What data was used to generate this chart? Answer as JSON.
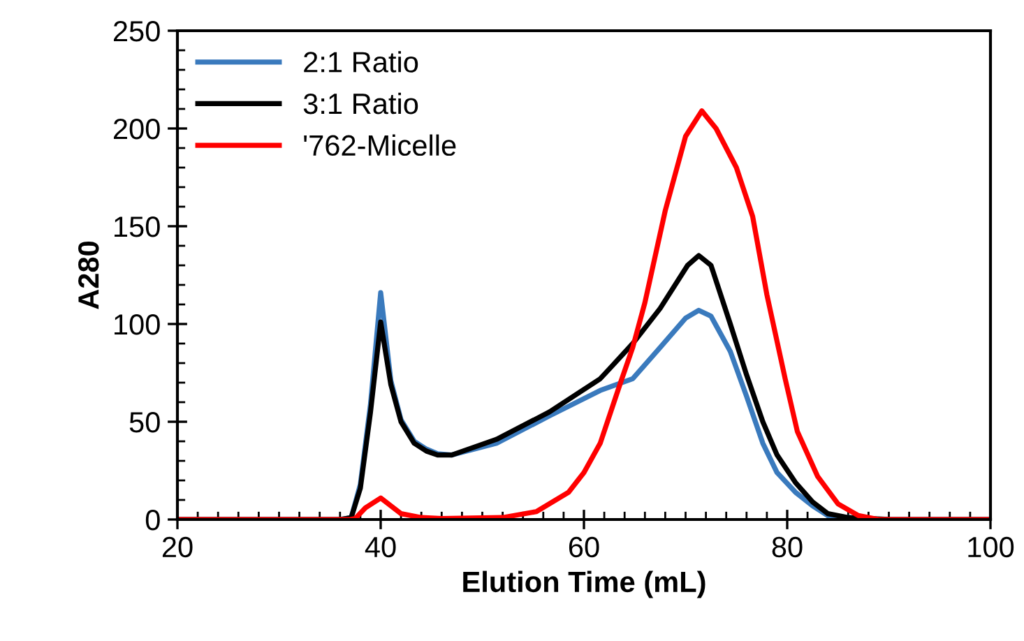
{
  "chart_data": {
    "type": "line",
    "xlabel": "Elution Time (mL)",
    "ylabel": "A280",
    "xlim": [
      20,
      100
    ],
    "xticks": [
      20,
      40,
      60,
      80,
      100
    ],
    "ylim": [
      0,
      250
    ],
    "yticks": [
      0,
      50,
      100,
      150,
      200,
      250
    ],
    "legend": "top left",
    "grid": false,
    "marker": "none",
    "line_style": "solid",
    "series": [
      {
        "name": "2:1 Ratio",
        "color": "#3a7abd",
        "x": [
          20,
          36,
          37.1,
          38,
          39,
          40,
          41,
          42,
          43.3,
          44.5,
          45.6,
          47,
          51.4,
          56.6,
          61.6,
          64.8,
          67.5,
          70,
          71.3,
          72.5,
          74.4,
          76,
          77.6,
          79,
          80.8,
          82.5,
          84,
          86,
          88,
          100
        ],
        "values": [
          0,
          0,
          1,
          18,
          59,
          116,
          71,
          51,
          40,
          36,
          33.6,
          33,
          39,
          53,
          66,
          72,
          88,
          103,
          107,
          104,
          86,
          63,
          39,
          24,
          14,
          7,
          2,
          1,
          0,
          0
        ]
      },
      {
        "name": "3:1 Ratio",
        "color": "#000000",
        "x": [
          20,
          36,
          37.1,
          38,
          39,
          40,
          41,
          42,
          43.3,
          44.5,
          45.6,
          47,
          51.4,
          56.6,
          61.6,
          62.5,
          64.8,
          67.5,
          70.2,
          71.3,
          72.5,
          74.4,
          76,
          77.6,
          79,
          80.8,
          82.5,
          84,
          86,
          90,
          100
        ],
        "values": [
          0,
          0,
          1,
          16,
          55,
          101,
          69,
          50,
          39,
          35,
          33,
          33,
          41,
          55,
          72,
          77,
          90,
          108,
          130,
          135,
          130,
          100,
          74,
          50,
          33,
          19,
          9,
          3,
          1,
          0,
          0
        ]
      },
      {
        "name": "'762-Micelle",
        "color": "#ff0000",
        "x": [
          20,
          37,
          37.5,
          38.5,
          40,
          41,
          42,
          44,
          46,
          52,
          55.3,
          58.5,
          60,
          61.6,
          63.6,
          64.8,
          66,
          68,
          70,
          71.6,
          73,
          75,
          76.6,
          78,
          79.8,
          81,
          83,
          85,
          87,
          89,
          100
        ],
        "values": [
          0,
          0,
          0.5,
          6,
          11,
          7,
          3,
          1,
          0.5,
          1,
          4,
          14,
          24,
          39,
          70,
          88,
          111,
          158,
          196,
          209,
          200,
          180,
          155,
          115,
          72,
          45,
          22,
          8,
          2,
          0,
          0
        ]
      }
    ]
  }
}
